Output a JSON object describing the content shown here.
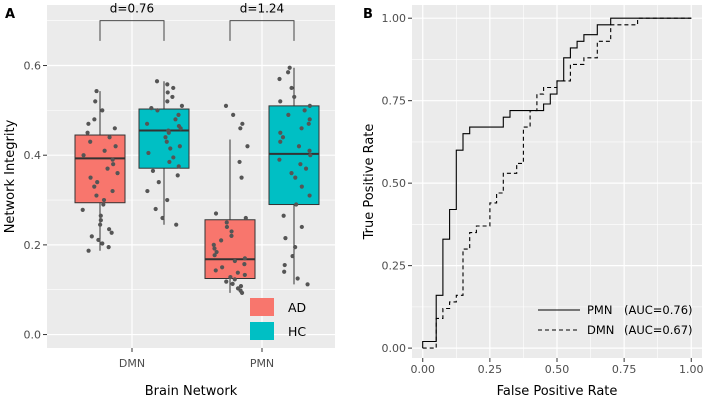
{
  "figure": {
    "panel_a_letter": "A",
    "panel_b_letter": "B"
  },
  "colors": {
    "AD": "#f8766d",
    "HC": "#00bfc4",
    "panel_bg": "#ebebeb",
    "grid": "#ffffff",
    "points": "#555555"
  },
  "chart_data": [
    {
      "type": "box",
      "title": "",
      "xlabel": "Brain Network",
      "ylabel": "Network Integrity",
      "categories": [
        "DMN",
        "PMN"
      ],
      "ylim": [
        -0.03,
        0.735
      ],
      "yticks": [
        0.0,
        0.2,
        0.4,
        0.6
      ],
      "ytick_labels": [
        "0.0",
        "0.2",
        "0.4",
        "0.6"
      ],
      "legend_position": "bottom-right",
      "legend": [
        {
          "key": "AD",
          "label": "AD"
        },
        {
          "key": "HC",
          "label": "HC"
        }
      ],
      "groups": [
        {
          "category": "DMN",
          "key": "AD",
          "min": 0.187,
          "q1": 0.294,
          "median": 0.393,
          "q3": 0.445,
          "max": 0.543,
          "points": [
            0.187,
            0.195,
            0.203,
            0.211,
            0.219,
            0.227,
            0.235,
            0.245,
            0.255,
            0.265,
            0.278,
            0.29,
            0.3,
            0.31,
            0.32,
            0.33,
            0.34,
            0.35,
            0.36,
            0.37,
            0.38,
            0.39,
            0.4,
            0.41,
            0.42,
            0.43,
            0.44,
            0.45,
            0.46,
            0.47,
            0.48,
            0.5,
            0.52,
            0.543
          ]
        },
        {
          "category": "DMN",
          "key": "HC",
          "min": 0.245,
          "q1": 0.371,
          "median": 0.455,
          "q3": 0.503,
          "max": 0.565,
          "points": [
            0.245,
            0.26,
            0.28,
            0.3,
            0.32,
            0.34,
            0.355,
            0.365,
            0.375,
            0.385,
            0.395,
            0.405,
            0.415,
            0.42,
            0.43,
            0.44,
            0.45,
            0.455,
            0.46,
            0.465,
            0.47,
            0.48,
            0.49,
            0.5,
            0.505,
            0.51,
            0.52,
            0.53,
            0.54,
            0.55,
            0.558,
            0.565
          ]
        },
        {
          "category": "PMN",
          "key": "AD",
          "min": 0.093,
          "q1": 0.125,
          "median": 0.168,
          "q3": 0.256,
          "max": 0.435,
          "points": [
            0.093,
            0.098,
            0.103,
            0.108,
            0.113,
            0.118,
            0.123,
            0.128,
            0.133,
            0.138,
            0.143,
            0.15,
            0.157,
            0.164,
            0.17,
            0.177,
            0.184,
            0.192,
            0.2,
            0.21,
            0.22,
            0.23,
            0.24,
            0.25,
            0.26,
            0.27,
            0.35,
            0.385,
            0.42,
            0.46,
            0.47,
            0.49,
            0.51
          ]
        },
        {
          "category": "PMN",
          "key": "HC",
          "min": 0.112,
          "q1": 0.29,
          "median": 0.403,
          "q3": 0.51,
          "max": 0.595,
          "points": [
            0.112,
            0.125,
            0.14,
            0.155,
            0.175,
            0.195,
            0.215,
            0.24,
            0.265,
            0.29,
            0.31,
            0.33,
            0.35,
            0.36,
            0.37,
            0.38,
            0.39,
            0.4,
            0.41,
            0.42,
            0.43,
            0.44,
            0.45,
            0.46,
            0.47,
            0.48,
            0.49,
            0.5,
            0.51,
            0.52,
            0.53,
            0.55,
            0.57,
            0.585,
            0.595
          ]
        }
      ],
      "annotations": [
        {
          "category": "DMN",
          "text": "d=0.76"
        },
        {
          "category": "PMN",
          "text": "d=1.24"
        }
      ],
      "bracket_y": [
        0.655,
        0.7
      ]
    },
    {
      "type": "line",
      "title": "",
      "xlabel": "False Positive Rate",
      "ylabel": "True Positive Rate",
      "xlim": [
        -0.04,
        1.04
      ],
      "ylim": [
        -0.03,
        1.04
      ],
      "xticks": [
        0.0,
        0.25,
        0.5,
        0.75,
        1.0
      ],
      "xtick_labels": [
        "0.00",
        "0.25",
        "0.50",
        "0.75",
        "1.00"
      ],
      "yticks": [
        0.0,
        0.25,
        0.5,
        0.75,
        1.0
      ],
      "ytick_labels": [
        "0.00",
        "0.25",
        "0.50",
        "0.75",
        "1.00"
      ],
      "legend_position": "bottom-right",
      "series": [
        {
          "name": "PMN",
          "label": "PMN",
          "auc_label": "(AUC=0.76)",
          "dash": "solid",
          "x": [
            0,
            0,
            0.05,
            0.05,
            0.075,
            0.075,
            0.1,
            0.1,
            0.125,
            0.125,
            0.15,
            0.15,
            0.175,
            0.175,
            0.2,
            0.2,
            0.3,
            0.3,
            0.325,
            0.325,
            0.45,
            0.45,
            0.475,
            0.475,
            0.5,
            0.5,
            0.525,
            0.525,
            0.55,
            0.55,
            0.575,
            0.575,
            0.6,
            0.6,
            0.625,
            0.625,
            0.65,
            0.65,
            0.7,
            0.7,
            1.0
          ],
          "y": [
            0,
            0.02,
            0.02,
            0.16,
            0.16,
            0.33,
            0.33,
            0.42,
            0.42,
            0.6,
            0.6,
            0.65,
            0.65,
            0.67,
            0.67,
            0.67,
            0.67,
            0.7,
            0.7,
            0.72,
            0.72,
            0.74,
            0.74,
            0.77,
            0.77,
            0.81,
            0.81,
            0.88,
            0.88,
            0.91,
            0.91,
            0.93,
            0.93,
            0.95,
            0.95,
            0.95,
            0.95,
            0.98,
            0.98,
            1.0,
            1.0
          ]
        },
        {
          "name": "DMN",
          "label": "DMN",
          "auc_label": "(AUC=0.67)",
          "dash": "dashed",
          "x": [
            0,
            0.025,
            0.025,
            0.05,
            0.05,
            0.075,
            0.075,
            0.1,
            0.1,
            0.125,
            0.125,
            0.15,
            0.15,
            0.175,
            0.175,
            0.2,
            0.2,
            0.225,
            0.225,
            0.25,
            0.25,
            0.275,
            0.275,
            0.3,
            0.3,
            0.35,
            0.35,
            0.375,
            0.375,
            0.4,
            0.4,
            0.425,
            0.425,
            0.45,
            0.45,
            0.5,
            0.5,
            0.55,
            0.55,
            0.6,
            0.6,
            0.65,
            0.65,
            0.7,
            0.7,
            0.8,
            0.8,
            1.0
          ],
          "y": [
            0,
            0,
            0,
            0,
            0.09,
            0.09,
            0.12,
            0.12,
            0.14,
            0.14,
            0.16,
            0.16,
            0.3,
            0.3,
            0.35,
            0.35,
            0.37,
            0.37,
            0.37,
            0.37,
            0.44,
            0.44,
            0.47,
            0.47,
            0.53,
            0.53,
            0.56,
            0.56,
            0.67,
            0.67,
            0.72,
            0.72,
            0.77,
            0.77,
            0.79,
            0.79,
            0.81,
            0.81,
            0.86,
            0.86,
            0.88,
            0.88,
            0.93,
            0.93,
            0.98,
            0.98,
            1.0,
            1.0
          ]
        }
      ]
    }
  ]
}
